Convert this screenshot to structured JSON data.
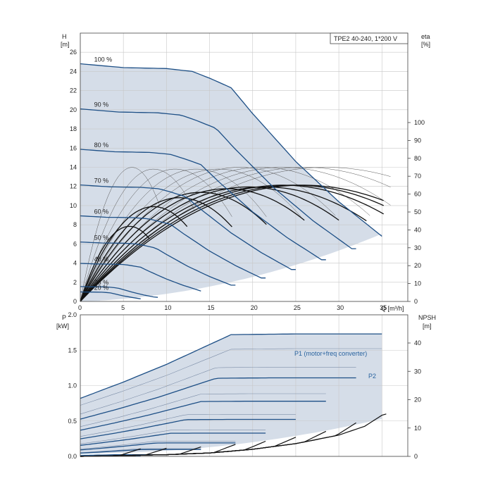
{
  "title_box": "TPE2 40-240, 1*200 V",
  "chart_data": [
    {
      "type": "line",
      "name": "head-curves",
      "xlabel": "Q [m³/h]",
      "ylabel_main": "H",
      "ylabel_unit": "[m]",
      "y2label_main": "eta",
      "y2label_unit": "[%]",
      "xlim": [
        0,
        38
      ],
      "ylim": [
        0,
        28
      ],
      "x_ticks": [
        "0",
        "5",
        "10",
        "15",
        "20",
        "25",
        "30",
        "35"
      ],
      "y_ticks": [
        "0",
        "2",
        "4",
        "6",
        "8",
        "10",
        "12",
        "14",
        "16",
        "18",
        "20",
        "22",
        "24",
        "26"
      ],
      "y2_ticks": [
        "0",
        "10",
        "20",
        "30",
        "40",
        "50",
        "60",
        "70",
        "80",
        "90",
        "100"
      ],
      "speed_labels": [
        {
          "label": "100 %",
          "speed": 1.0
        },
        {
          "label": "90 %",
          "speed": 0.9
        },
        {
          "label": "80 %",
          "speed": 0.8
        },
        {
          "label": "70 %",
          "speed": 0.7
        },
        {
          "label": "60 %",
          "speed": 0.6
        },
        {
          "label": "50 %",
          "speed": 0.5
        },
        {
          "label": "40 %",
          "speed": 0.4
        },
        {
          "label": "25 %",
          "speed": 0.25
        },
        {
          "label": "20 %",
          "speed": 0.2
        }
      ],
      "head_100": [
        [
          0,
          24.8
        ],
        [
          5,
          24.4
        ],
        [
          10,
          24.3
        ],
        [
          13,
          24.0
        ],
        [
          15,
          23.3
        ],
        [
          17.5,
          22.3
        ],
        [
          20,
          19.6
        ],
        [
          25,
          14.6
        ],
        [
          30,
          10.4
        ],
        [
          35,
          6.8
        ]
      ],
      "speed_curve_max_q": [
        35,
        32.3,
        28.8,
        25.2,
        21.6,
        18.0,
        14.4,
        9.0,
        7.2
      ]
    },
    {
      "type": "line",
      "name": "power-curves",
      "xlabel": "Q [m³/h]",
      "ylabel_main": "P",
      "ylabel_unit": "[kW]",
      "y2label_main": "NPSH",
      "y2label_unit": "[m]",
      "xlim": [
        0,
        38
      ],
      "ylim": [
        0,
        2.0
      ],
      "y_ticks": [
        "0.0",
        "0.5",
        "1.0",
        "1.5",
        "2.0"
      ],
      "y2_ticks": [
        "0",
        "10",
        "20",
        "30",
        "40"
      ],
      "legend": [
        "P1 (motor+freq converter)",
        "P2"
      ],
      "p1_100": [
        [
          0,
          0.82
        ],
        [
          5,
          1.05
        ],
        [
          10,
          1.3
        ],
        [
          15,
          1.58
        ],
        [
          17.5,
          1.72
        ],
        [
          25,
          1.73
        ],
        [
          35,
          1.73
        ]
      ],
      "npsh": [
        [
          0,
          0
        ],
        [
          10,
          0.6
        ],
        [
          15,
          1.2
        ],
        [
          20,
          2.5
        ],
        [
          25,
          4.5
        ],
        [
          30,
          7.5
        ],
        [
          35,
          12.7
        ]
      ]
    }
  ]
}
